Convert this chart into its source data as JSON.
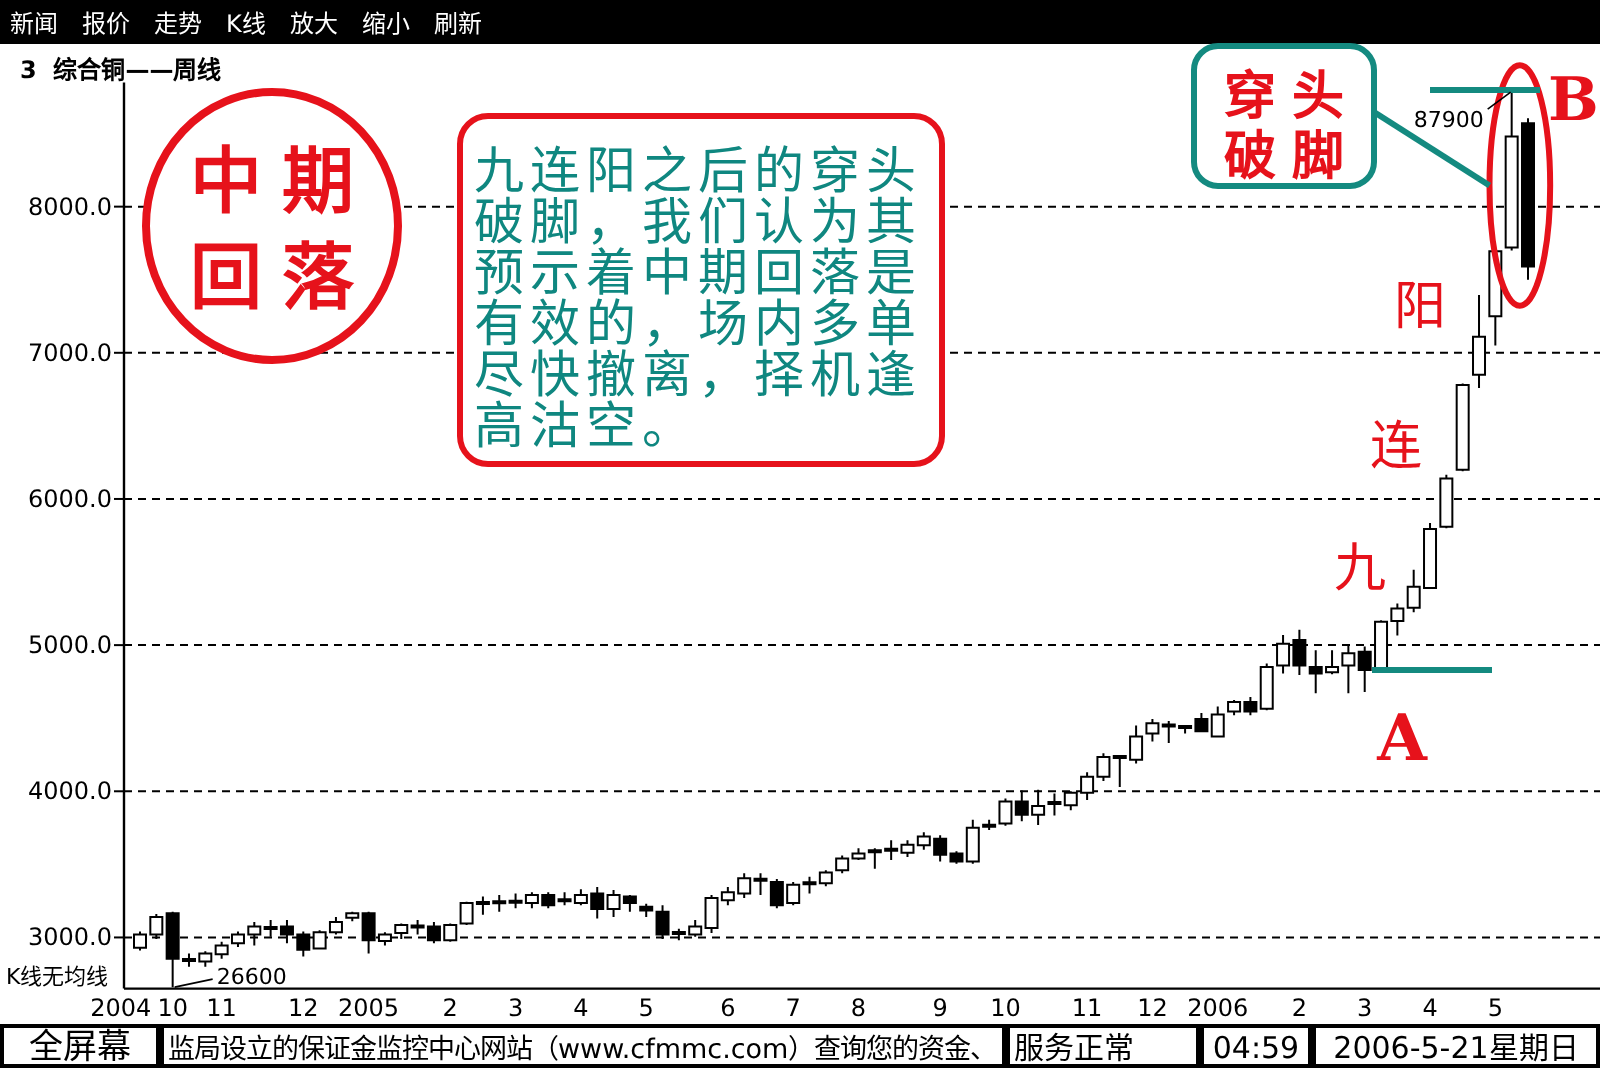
{
  "chart_data": {
    "type": "candlestick",
    "title": "3  综合铜——周线",
    "categories": [
      null,
      null,
      "10",
      null,
      null,
      "11",
      null,
      null,
      null,
      null,
      "12",
      null,
      null,
      null,
      "2005",
      null,
      null,
      null,
      null,
      "2",
      null,
      null,
      null,
      "3",
      null,
      null,
      null,
      "4",
      null,
      null,
      null,
      "5",
      null,
      null,
      null,
      null,
      "6",
      null,
      null,
      null,
      "7",
      null,
      null,
      null,
      "8",
      null,
      null,
      null,
      null,
      "9",
      null,
      null,
      null,
      "10",
      null,
      null,
      null,
      null,
      "11",
      null,
      null,
      null,
      "12",
      null,
      null,
      null,
      "2006",
      null,
      null,
      null,
      null,
      "2",
      null,
      null,
      null,
      "3",
      null,
      null,
      null,
      "4",
      null,
      null,
      null,
      "5",
      null,
      null
    ],
    "ohlc": [
      [
        2930,
        3040,
        2910,
        3020
      ],
      [
        3020,
        3160,
        2990,
        3140
      ],
      [
        3165,
        3175,
        2660,
        2855
      ],
      [
        2845,
        2890,
        2800,
        2845
      ],
      [
        2835,
        2905,
        2800,
        2890
      ],
      [
        2885,
        2970,
        2855,
        2945
      ],
      [
        2960,
        3040,
        2935,
        3020
      ],
      [
        3020,
        3105,
        2945,
        3075
      ],
      [
        3065,
        3120,
        3005,
        3065
      ],
      [
        3075,
        3120,
        2960,
        3020
      ],
      [
        3020,
        3040,
        2870,
        2915
      ],
      [
        2925,
        3050,
        2920,
        3035
      ],
      [
        3035,
        3140,
        3020,
        3105
      ],
      [
        3135,
        3175,
        3110,
        3165
      ],
      [
        3165,
        3175,
        2890,
        2980
      ],
      [
        2975,
        3035,
        2945,
        3020
      ],
      [
        3030,
        3095,
        2990,
        3085
      ],
      [
        3075,
        3120,
        3020,
        3075
      ],
      [
        3075,
        3105,
        2960,
        2980
      ],
      [
        2980,
        3095,
        2970,
        3085
      ],
      [
        3095,
        3245,
        3085,
        3235
      ],
      [
        3235,
        3280,
        3155,
        3235
      ],
      [
        3240,
        3290,
        3175,
        3240
      ],
      [
        3245,
        3300,
        3200,
        3245
      ],
      [
        3235,
        3310,
        3200,
        3290
      ],
      [
        3290,
        3310,
        3200,
        3220
      ],
      [
        3255,
        3310,
        3220,
        3255
      ],
      [
        3235,
        3330,
        3220,
        3290
      ],
      [
        3300,
        3345,
        3130,
        3195
      ],
      [
        3195,
        3325,
        3140,
        3290
      ],
      [
        3280,
        3290,
        3175,
        3235
      ],
      [
        3210,
        3230,
        3140,
        3185
      ],
      [
        3175,
        3220,
        2990,
        3020
      ],
      [
        3030,
        3060,
        2980,
        3030
      ],
      [
        3020,
        3120,
        3005,
        3075
      ],
      [
        3065,
        3290,
        3030,
        3270
      ],
      [
        3255,
        3345,
        3220,
        3310
      ],
      [
        3300,
        3440,
        3270,
        3405
      ],
      [
        3395,
        3440,
        3290,
        3395
      ],
      [
        3380,
        3400,
        3200,
        3220
      ],
      [
        3235,
        3380,
        3220,
        3360
      ],
      [
        3370,
        3415,
        3300,
        3370
      ],
      [
        3370,
        3460,
        3350,
        3445
      ],
      [
        3460,
        3560,
        3440,
        3540
      ],
      [
        3540,
        3610,
        3530,
        3575
      ],
      [
        3590,
        3610,
        3470,
        3590
      ],
      [
        3600,
        3665,
        3530,
        3600
      ],
      [
        3580,
        3665,
        3550,
        3635
      ],
      [
        3630,
        3720,
        3600,
        3690
      ],
      [
        3675,
        3700,
        3520,
        3565
      ],
      [
        3575,
        3590,
        3505,
        3520
      ],
      [
        3520,
        3805,
        3505,
        3750
      ],
      [
        3765,
        3805,
        3735,
        3765
      ],
      [
        3780,
        3950,
        3765,
        3930
      ],
      [
        3930,
        4005,
        3795,
        3840
      ],
      [
        3840,
        4010,
        3770,
        3900
      ],
      [
        3920,
        3985,
        3835,
        3920
      ],
      [
        3905,
        4000,
        3870,
        3990
      ],
      [
        3990,
        4130,
        3940,
        4100
      ],
      [
        4100,
        4260,
        4070,
        4235
      ],
      [
        4235,
        4245,
        4030,
        4235
      ],
      [
        4215,
        4450,
        4190,
        4375
      ],
      [
        4395,
        4495,
        4340,
        4465
      ],
      [
        4450,
        4480,
        4330,
        4450
      ],
      [
        4440,
        4450,
        4395,
        4440
      ],
      [
        4495,
        4535,
        4405,
        4410
      ],
      [
        4375,
        4580,
        4375,
        4525
      ],
      [
        4545,
        4625,
        4520,
        4610
      ],
      [
        4610,
        4645,
        4520,
        4545
      ],
      [
        4565,
        4875,
        4555,
        4850
      ],
      [
        4860,
        5070,
        4805,
        5010
      ],
      [
        5035,
        5105,
        4795,
        4860
      ],
      [
        4850,
        4965,
        4670,
        4805
      ],
      [
        4815,
        4965,
        4800,
        4850
      ],
      [
        4860,
        5005,
        4670,
        4945
      ],
      [
        4955,
        4990,
        4680,
        4830
      ],
      [
        4830,
        5170,
        4820,
        5160
      ],
      [
        5165,
        5285,
        5065,
        5250
      ],
      [
        5255,
        5515,
        5225,
        5400
      ],
      [
        5390,
        5835,
        5390,
        5795
      ],
      [
        5810,
        6165,
        5800,
        6140
      ],
      [
        6200,
        6790,
        6190,
        6780
      ],
      [
        6850,
        7395,
        6760,
        7110
      ],
      [
        7250,
        7700,
        7050,
        7695
      ],
      [
        7720,
        8790,
        7700,
        8480
      ],
      [
        8570,
        8605,
        7500,
        7590
      ]
    ],
    "color": "#000000",
    "ylim": [
      2650,
      8850
    ],
    "yticks": [
      {
        "value": 3000,
        "label": "3000.0"
      },
      {
        "value": 4000,
        "label": "4000.0"
      },
      {
        "value": 5000,
        "label": "5000.0"
      },
      {
        "value": 6000,
        "label": "6000.0"
      },
      {
        "value": 7000,
        "label": "7000.0"
      },
      {
        "value": 8000,
        "label": "8000.0"
      }
    ],
    "grid": "y",
    "annotations": [
      "新闻",
      "报价",
      "走势",
      "K线",
      "放大",
      "缩小",
      "刷新",
      "K线无均线",
      "2004",
      "中期回落",
      "九连阳之后的穿头破脚，我们认为其预示着中期回落是有效的，场内多单尽快撤离，择机逢高沽空。",
      "穿头破脚",
      "九",
      "连",
      "阳",
      "A",
      "B",
      "87900",
      "26600",
      "全屏幕",
      "监局设立的保证金监控中心网站（www.cfmmc.com）查询您的资金、",
      "服务正常",
      "04:59",
      "2006-5-21星期日"
    ]
  }
}
